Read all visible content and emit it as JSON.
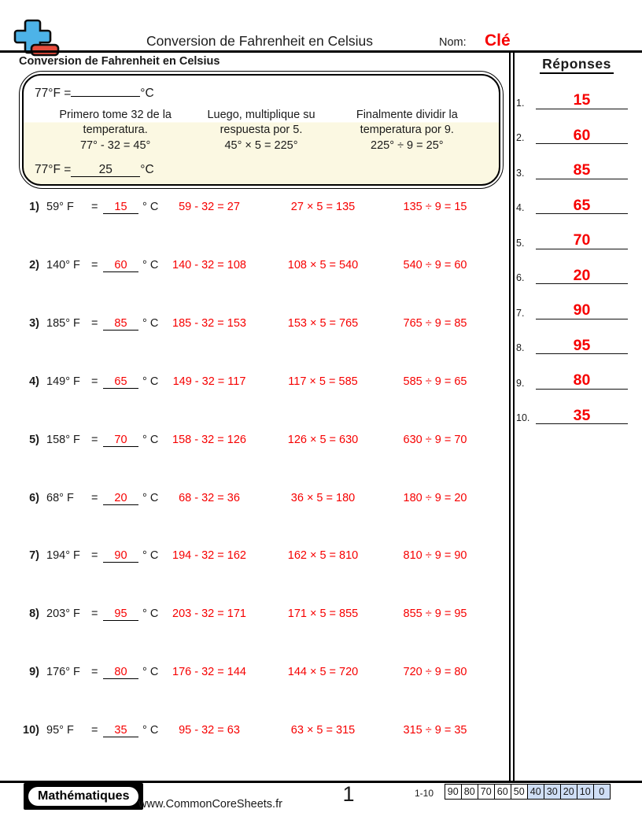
{
  "colors": {
    "accent_red": "#f60000",
    "example_cream": "#fbf8e2",
    "score_highlight_blue": "#cfdef5",
    "logo_blue": "#4db3e8",
    "logo_red": "#e74c3c"
  },
  "header": {
    "title": "Conversion de Fahrenheit en Celsius",
    "name_label": "Nom:",
    "name_value": "Clé"
  },
  "worksheet": {
    "section_title": "Conversion de Fahrenheit en Celsius",
    "example": {
      "prompt_prefix": "77°F =",
      "prompt_blank": "",
      "prompt_unit": "°C",
      "steps": [
        {
          "text": "Primero tome 32 de la temperatura.",
          "equation": "77° - 32 = 45°"
        },
        {
          "text": "Luego, multiplique su respuesta por 5.",
          "equation": "45° × 5 = 225°"
        },
        {
          "text": "Finalmente dividir la temperatura por 9.",
          "equation": "225° ÷ 9 = 25°"
        }
      ],
      "answer_prefix": "77°F =",
      "answer_value": "25",
      "answer_unit": "°C"
    },
    "problems": [
      {
        "num": "1)",
        "fahrenheit": "59° F",
        "equals": "=",
        "celsius": "15",
        "unit": "° C",
        "work": [
          "59 - 32 = 27",
          "27 × 5 = 135",
          "135 ÷ 9 = 15"
        ]
      },
      {
        "num": "2)",
        "fahrenheit": "140° F",
        "equals": "=",
        "celsius": "60",
        "unit": "° C",
        "work": [
          "140 - 32 = 108",
          "108 × 5 = 540",
          "540 ÷ 9 = 60"
        ]
      },
      {
        "num": "3)",
        "fahrenheit": "185° F",
        "equals": "=",
        "celsius": "85",
        "unit": "° C",
        "work": [
          "185 - 32 = 153",
          "153 × 5 = 765",
          "765 ÷ 9 = 85"
        ]
      },
      {
        "num": "4)",
        "fahrenheit": "149° F",
        "equals": "=",
        "celsius": "65",
        "unit": "° C",
        "work": [
          "149 - 32 = 117",
          "117 × 5 = 585",
          "585 ÷ 9 = 65"
        ]
      },
      {
        "num": "5)",
        "fahrenheit": "158° F",
        "equals": "=",
        "celsius": "70",
        "unit": "° C",
        "work": [
          "158 - 32 = 126",
          "126 × 5 = 630",
          "630 ÷ 9 = 70"
        ]
      },
      {
        "num": "6)",
        "fahrenheit": "68° F",
        "equals": "=",
        "celsius": "20",
        "unit": "° C",
        "work": [
          "68 - 32 = 36",
          "36 × 5 = 180",
          "180 ÷ 9 = 20"
        ]
      },
      {
        "num": "7)",
        "fahrenheit": "194° F",
        "equals": "=",
        "celsius": "90",
        "unit": "° C",
        "work": [
          "194 - 32 = 162",
          "162 × 5 = 810",
          "810 ÷ 9 = 90"
        ]
      },
      {
        "num": "8)",
        "fahrenheit": "203° F",
        "equals": "=",
        "celsius": "95",
        "unit": "° C",
        "work": [
          "203 - 32 = 171",
          "171 × 5 = 855",
          "855 ÷ 9 = 95"
        ]
      },
      {
        "num": "9)",
        "fahrenheit": "176° F",
        "equals": "=",
        "celsius": "80",
        "unit": "° C",
        "work": [
          "176 - 32 = 144",
          "144 × 5 = 720",
          "720 ÷ 9 = 80"
        ]
      },
      {
        "num": "10)",
        "fahrenheit": "95° F",
        "equals": "=",
        "celsius": "35",
        "unit": "° C",
        "work": [
          "95 - 32 = 63",
          "63 × 5 = 315",
          "315 ÷ 9 = 35"
        ]
      }
    ]
  },
  "answers_panel": {
    "title": "Réponses",
    "items": [
      {
        "num": "1.",
        "value": "15"
      },
      {
        "num": "2.",
        "value": "60"
      },
      {
        "num": "3.",
        "value": "85"
      },
      {
        "num": "4.",
        "value": "65"
      },
      {
        "num": "5.",
        "value": "70"
      },
      {
        "num": "6.",
        "value": "20"
      },
      {
        "num": "7.",
        "value": "90"
      },
      {
        "num": "8.",
        "value": "95"
      },
      {
        "num": "9.",
        "value": "80"
      },
      {
        "num": "10.",
        "value": "35"
      }
    ]
  },
  "footer": {
    "brand": "Mathématiques",
    "website": "www.CommonCoreSheets.fr",
    "page_number": "1",
    "score_label": "1-10",
    "score_cells": [
      {
        "value": "90",
        "highlight": false
      },
      {
        "value": "80",
        "highlight": false
      },
      {
        "value": "70",
        "highlight": false
      },
      {
        "value": "60",
        "highlight": false
      },
      {
        "value": "50",
        "highlight": false
      },
      {
        "value": "40",
        "highlight": true
      },
      {
        "value": "30",
        "highlight": true
      },
      {
        "value": "20",
        "highlight": true
      },
      {
        "value": "10",
        "highlight": true
      },
      {
        "value": "0",
        "highlight": true
      }
    ]
  }
}
